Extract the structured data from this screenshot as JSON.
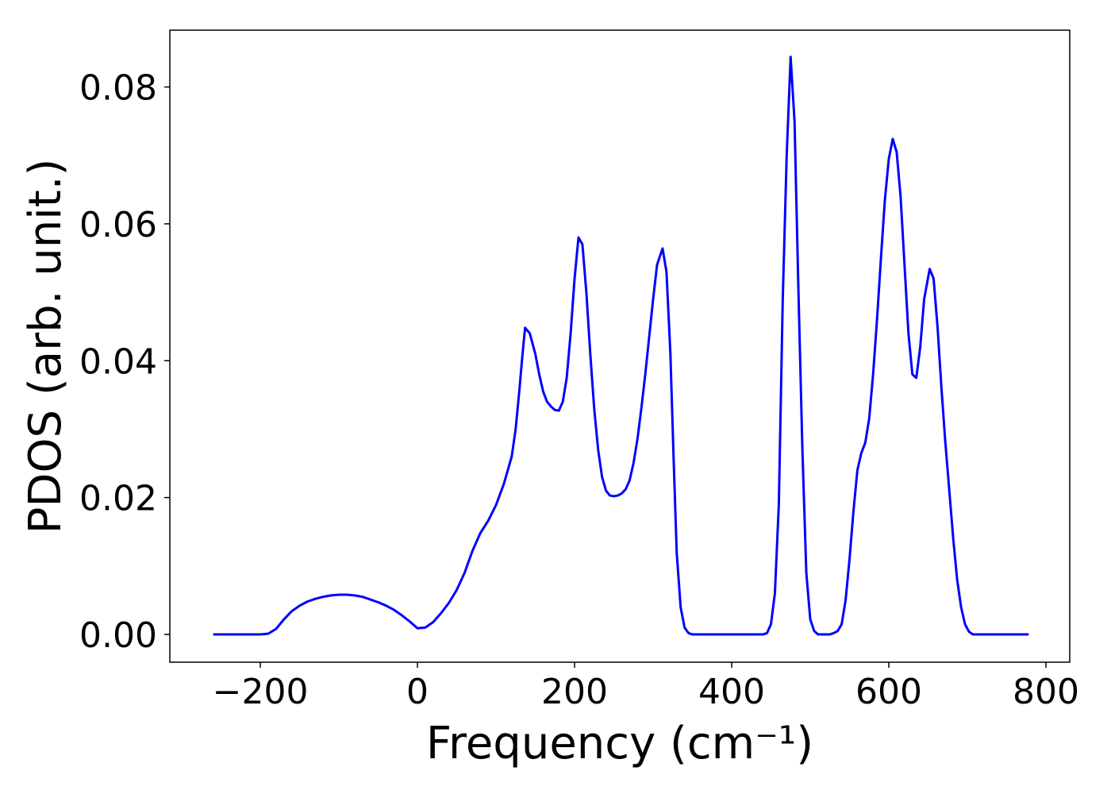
{
  "chart_data": {
    "type": "line",
    "xlabel": "Frequency (cm⁻¹)",
    "ylabel": "PDOS (arb. unit.)",
    "color": "#0000ff",
    "x": [
      -260,
      -200,
      -190,
      -180,
      -170,
      -160,
      -150,
      -140,
      -130,
      -120,
      -110,
      -100,
      -90,
      -80,
      -70,
      -60,
      -50,
      -40,
      -30,
      -20,
      -10,
      0,
      10,
      20,
      30,
      40,
      50,
      60,
      70,
      80,
      90,
      100,
      110,
      120,
      125,
      130,
      133,
      137,
      143,
      150,
      155,
      160,
      165,
      170,
      175,
      180,
      185,
      190,
      195,
      200,
      205,
      210,
      215,
      220,
      225,
      230,
      235,
      240,
      245,
      250,
      255,
      260,
      265,
      270,
      275,
      280,
      285,
      290,
      295,
      300,
      305,
      312,
      317,
      322,
      326,
      330,
      335,
      340,
      345,
      350,
      440,
      445,
      450,
      455,
      460,
      465,
      470,
      475,
      480,
      485,
      490,
      495,
      500,
      505,
      510,
      525,
      530,
      535,
      540,
      545,
      550,
      555,
      560,
      565,
      570,
      575,
      580,
      585,
      590,
      595,
      600,
      605,
      610,
      615,
      620,
      625,
      630,
      635,
      640,
      645,
      652,
      657,
      662,
      667,
      672,
      677,
      682,
      687,
      692,
      697,
      702,
      707,
      778
    ],
    "values": [
      0,
      0,
      0.0001,
      0.0008,
      0.0022,
      0.0034,
      0.0042,
      0.0048,
      0.0052,
      0.0055,
      0.0057,
      0.0058,
      0.0058,
      0.0057,
      0.0055,
      0.0051,
      0.0047,
      0.0042,
      0.0036,
      0.0028,
      0.0019,
      0.0009,
      0.001,
      0.0018,
      0.0031,
      0.0046,
      0.0065,
      0.009,
      0.0122,
      0.0148,
      0.0166,
      0.0189,
      0.022,
      0.026,
      0.03,
      0.036,
      0.04,
      0.0448,
      0.044,
      0.041,
      0.038,
      0.0355,
      0.034,
      0.0333,
      0.0328,
      0.0327,
      0.034,
      0.0375,
      0.044,
      0.052,
      0.058,
      0.057,
      0.05,
      0.041,
      0.033,
      0.027,
      0.023,
      0.021,
      0.0203,
      0.0202,
      0.0203,
      0.0206,
      0.0212,
      0.0225,
      0.025,
      0.0285,
      0.033,
      0.038,
      0.0435,
      0.049,
      0.054,
      0.0564,
      0.053,
      0.041,
      0.026,
      0.012,
      0.004,
      0.001,
      0.0002,
      0,
      0,
      0.0002,
      0.0015,
      0.006,
      0.019,
      0.049,
      0.07,
      0.0844,
      0.075,
      0.05,
      0.027,
      0.009,
      0.0022,
      0.0005,
      0,
      0,
      0.0002,
      0.0005,
      0.0015,
      0.005,
      0.011,
      0.018,
      0.024,
      0.0265,
      0.028,
      0.0315,
      0.038,
      0.046,
      0.055,
      0.0635,
      0.0695,
      0.0724,
      0.0705,
      0.064,
      0.054,
      0.044,
      0.038,
      0.0375,
      0.042,
      0.049,
      0.0534,
      0.052,
      0.045,
      0.036,
      0.028,
      0.021,
      0.014,
      0.008,
      0.004,
      0.0015,
      0.0004,
      0,
      0
    ],
    "xlim": [
      -315.2,
      830.3
    ],
    "ylim": [
      -0.00406,
      0.0883
    ],
    "xticks": [
      {
        "value": -200,
        "label": "−200"
      },
      0,
      200,
      400,
      600,
      800
    ],
    "yticks": [
      {
        "value": 0,
        "label": "0.00"
      },
      {
        "value": 0.02,
        "label": "0.02"
      },
      {
        "value": 0.04,
        "label": "0.04"
      },
      {
        "value": 0.06,
        "label": "0.06"
      },
      {
        "value": 0.08,
        "label": "0.08"
      }
    ]
  }
}
